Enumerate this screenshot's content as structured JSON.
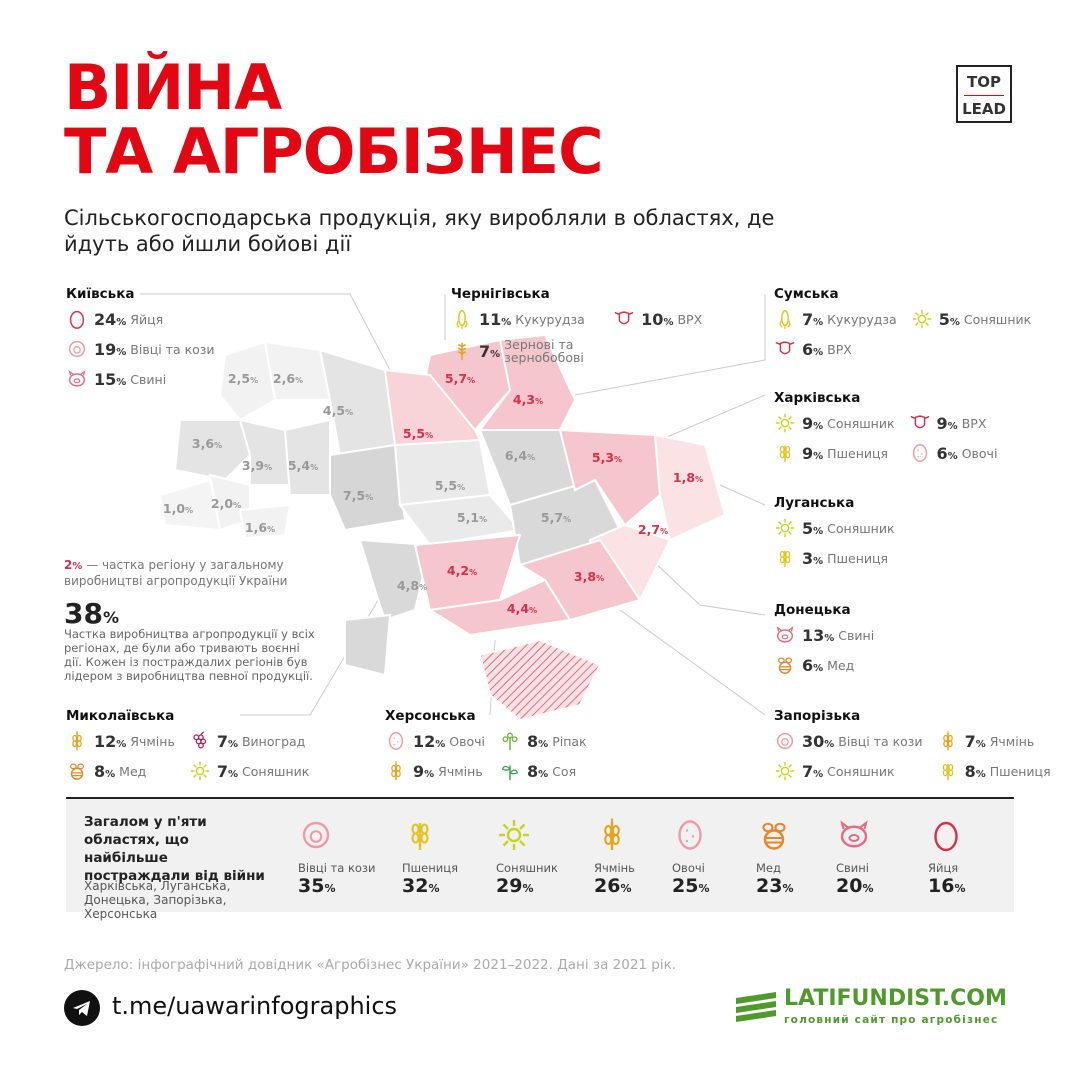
{
  "header": {
    "title_line1": "ВІЙНА",
    "title_line2": "ТА АГРОБІЗНЕС",
    "logo_top": "TOP",
    "logo_bottom": "LEAD",
    "subtitle": "Сільськогосподарська продукція, яку виробляли в областях, де йдуть або йшли бойові дії"
  },
  "regions": {
    "kyivska": {
      "name": "Київська",
      "items": [
        {
          "pct": "24",
          "label": "Яйця",
          "icon": "egg-icon"
        },
        {
          "pct": "19",
          "label": "Вівці та кози",
          "icon": "sheep-icon"
        },
        {
          "pct": "15",
          "label": "Свині",
          "icon": "pig-icon"
        }
      ]
    },
    "chernihivska": {
      "name": "Чернігівська",
      "items": [
        {
          "pct": "11",
          "label": "Кукурудза",
          "icon": "corn-icon"
        },
        {
          "pct": "10",
          "label": "ВРХ",
          "icon": "cow-icon"
        },
        {
          "pct": "7",
          "label": "Зернові та зернобобові",
          "icon": "grain-icon"
        }
      ]
    },
    "sumska": {
      "name": "Сумська",
      "items": [
        {
          "pct": "7",
          "label": "Кукурудза",
          "icon": "corn-icon"
        },
        {
          "pct": "5",
          "label": "Соняшник",
          "icon": "sunflower-icon"
        },
        {
          "pct": "6",
          "label": "ВРХ",
          "icon": "cow-icon"
        }
      ]
    },
    "kharkivska": {
      "name": "Харківська",
      "items": [
        {
          "pct": "9",
          "label": "Соняшник",
          "icon": "sunflower-icon"
        },
        {
          "pct": "9",
          "label": "ВРХ",
          "icon": "cow-icon"
        },
        {
          "pct": "9",
          "label": "Пшениця",
          "icon": "wheat-icon"
        },
        {
          "pct": "6",
          "label": "Овочі",
          "icon": "potato-icon"
        }
      ]
    },
    "luhanska": {
      "name": "Луганська",
      "items": [
        {
          "pct": "5",
          "label": "Соняшник",
          "icon": "sunflower-icon"
        },
        {
          "pct": "3",
          "label": "Пшениця",
          "icon": "wheat-icon"
        }
      ]
    },
    "donetska": {
      "name": "Донецька",
      "items": [
        {
          "pct": "13",
          "label": "Свині",
          "icon": "pig-icon"
        },
        {
          "pct": "6",
          "label": "Мед",
          "icon": "bee-icon"
        }
      ]
    },
    "zaporizka": {
      "name": "Запорізька",
      "items": [
        {
          "pct": "30",
          "label": "Вівці та кози",
          "icon": "sheep-icon"
        },
        {
          "pct": "7",
          "label": "Ячмінь",
          "icon": "barley-icon"
        },
        {
          "pct": "7",
          "label": "Соняшник",
          "icon": "sunflower-icon"
        },
        {
          "pct": "8",
          "label": "Пшениця",
          "icon": "wheat-icon"
        }
      ]
    },
    "khersonska": {
      "name": "Херсонська",
      "items": [
        {
          "pct": "12",
          "label": "Овочі",
          "icon": "potato-icon"
        },
        {
          "pct": "8",
          "label": "Ріпак",
          "icon": "rapeseed-icon"
        },
        {
          "pct": "9",
          "label": "Ячмінь",
          "icon": "barley-icon"
        },
        {
          "pct": "8",
          "label": "Соя",
          "icon": "soy-icon"
        }
      ]
    },
    "mykolaivska": {
      "name": "Миколаївська",
      "items": [
        {
          "pct": "12",
          "label": "Ячмінь",
          "icon": "barley-icon"
        },
        {
          "pct": "7",
          "label": "Виноград",
          "icon": "grape-icon"
        },
        {
          "pct": "8",
          "label": "Мед",
          "icon": "bee-icon"
        },
        {
          "pct": "7",
          "label": "Соняшник",
          "icon": "sunflower-icon"
        }
      ]
    }
  },
  "pct_sign": "%",
  "map_values": [
    "2,5",
    "2,6",
    "4,5",
    "3,6",
    "3,9",
    "5,4",
    "1,0",
    "2,0",
    "1,6",
    "7,5",
    "5,5",
    "5,1",
    "6,4",
    "5,7",
    "4,8",
    "5,7",
    "4,3",
    "5,5",
    "5,3",
    "1,8",
    "2,7",
    "4,2",
    "3,8",
    "4,4"
  ],
  "legend": {
    "value": "2",
    "pct": "%",
    "text": " — частка регіону у загальному виробництві агропродукції України"
  },
  "total": {
    "value": "38",
    "pct": "%",
    "desc": "Частка виробництва агропродукції у всіх регіонах, де були або тривають воєнні дії. Кожен із постраждалих регіонів був лідером з виробництва певної продукції."
  },
  "summary": {
    "title": "Загалом у п'яти областях, що найбільше постраждали від війни",
    "regions": "Харківська, Луганська, Донецька, Запорізька, Херсонська",
    "items": [
      {
        "label": "Вівці та кози",
        "value": "35",
        "icon": "sheep-icon"
      },
      {
        "label": "Пшениця",
        "value": "32",
        "icon": "wheat-icon"
      },
      {
        "label": "Соняшник",
        "value": "29",
        "icon": "sunflower-icon"
      },
      {
        "label": "Ячмінь",
        "value": "26",
        "icon": "barley-icon"
      },
      {
        "label": "Овочі",
        "value": "25",
        "icon": "potato-icon"
      },
      {
        "label": "Мед",
        "value": "23",
        "icon": "bee-icon"
      },
      {
        "label": "Свині",
        "value": "20",
        "icon": "pig-icon"
      },
      {
        "label": "Яйця",
        "value": "16",
        "icon": "egg-icon"
      }
    ]
  },
  "source": "Джерело: інфографічний довідник «Агробізнес України» 2021–2022. Дані за 2021 рік.",
  "telegram": "t.me/uawarinfographics",
  "brand": {
    "name": "LATIFUNDIST.COM",
    "tagline": "головний сайт про агробізнес"
  },
  "colors": {
    "accent": "#e30613",
    "map_red": "#f5c6cd",
    "map_red_label": "#d9304a",
    "green": "#4e9a2a"
  }
}
